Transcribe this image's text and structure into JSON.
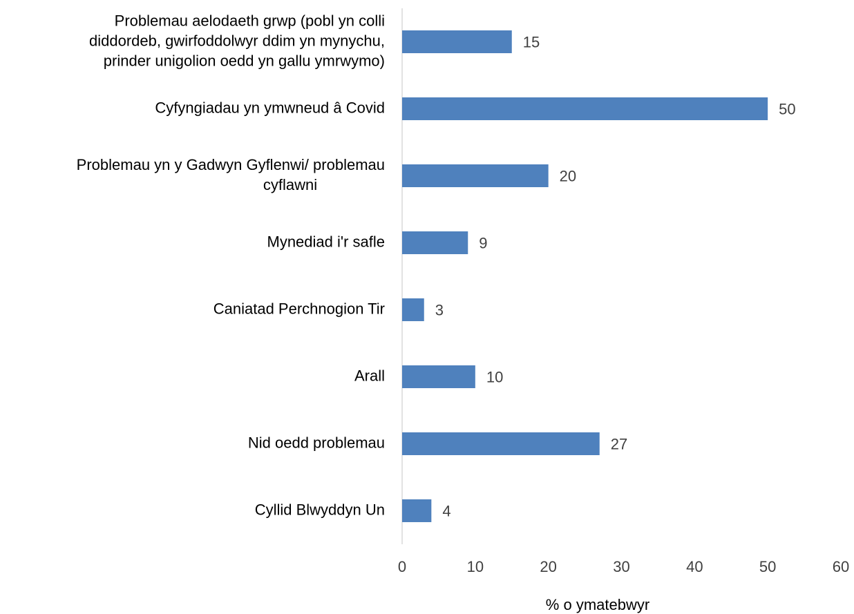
{
  "chart_data": {
    "type": "bar",
    "orientation": "horizontal",
    "categories": [
      "Problemau aelodaeth grwp (pobl yn colli\ndiddordeb, gwirfoddolwyr ddim yn mynychu,\nprinder unigolion oedd yn gallu ymrwymo)",
      "Cyfyngiadau yn ymwneud â Covid",
      "Problemau yn y Gadwyn Gyflenwi/ problemau\ncyflawni",
      "Mynediad i'r safle",
      "Caniatad Perchnogion Tir",
      "Arall",
      "Nid oedd problemau",
      "Cyllid Blwyddyn Un"
    ],
    "values": [
      15,
      50,
      20,
      9,
      3,
      10,
      27,
      4
    ],
    "color": "#4f81bd",
    "xlabel": "% o ymatebwyr",
    "xlim": [
      0,
      60
    ],
    "xticks": [
      0,
      10,
      20,
      30,
      40,
      50,
      60
    ],
    "grid": false
  }
}
